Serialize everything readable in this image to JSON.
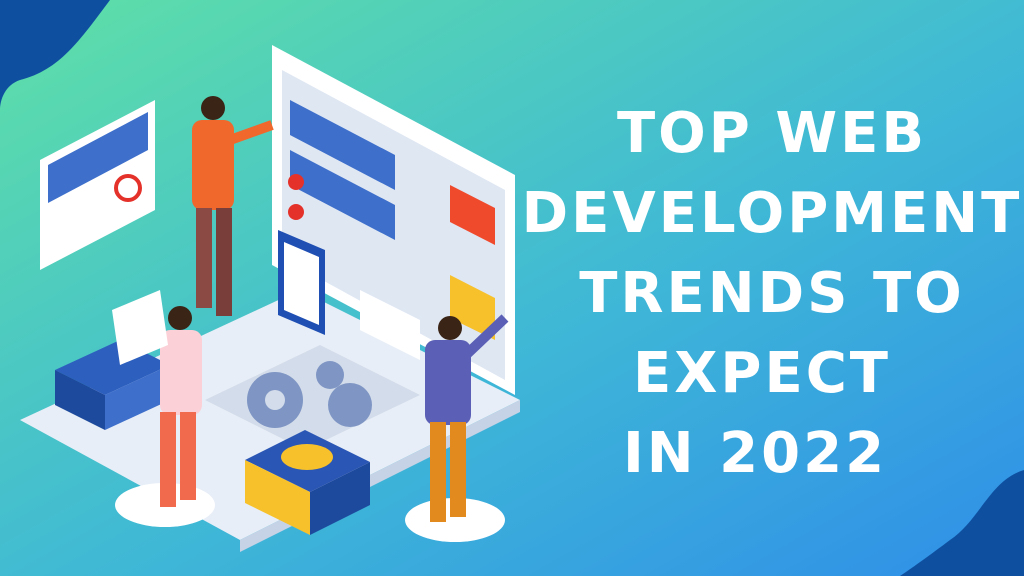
{
  "headline": {
    "lines": [
      "TOP WEB",
      "DEVELOPMENT",
      "TRENDS TO",
      "EXPECT",
      "IN 2022"
    ]
  }
}
